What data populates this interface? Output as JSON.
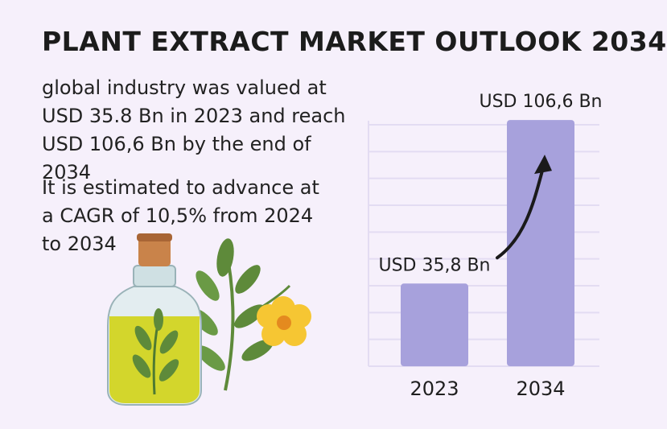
{
  "title": "PLANT EXTRACT MARKET OUTLOOK 2034",
  "description_1": "global industry was valued at USD 35.8 Bn in 2023 and reach USD 106,6 Bn by the end of 2034",
  "description_2": "It is estimated to advance at a CAGR of 10,5% from 2024 to 2034",
  "colors": {
    "background": "#f6f0fb",
    "bar": "#a7a1dc",
    "gridline": "#e3dcf2",
    "arrow": "#1a1a1a"
  },
  "chart_data": {
    "type": "bar",
    "title": "",
    "xlabel": "",
    "ylabel": "",
    "categories": [
      "2023",
      "2034"
    ],
    "values": [
      35.8,
      106.6
    ],
    "data_labels": [
      "USD 35,8 Bn",
      "USD 106,6 Bn"
    ],
    "ylim": [
      0,
      115
    ],
    "grid": true,
    "legend": "none",
    "annotation": "growth arrow from 2023 bar to 2034 bar"
  }
}
